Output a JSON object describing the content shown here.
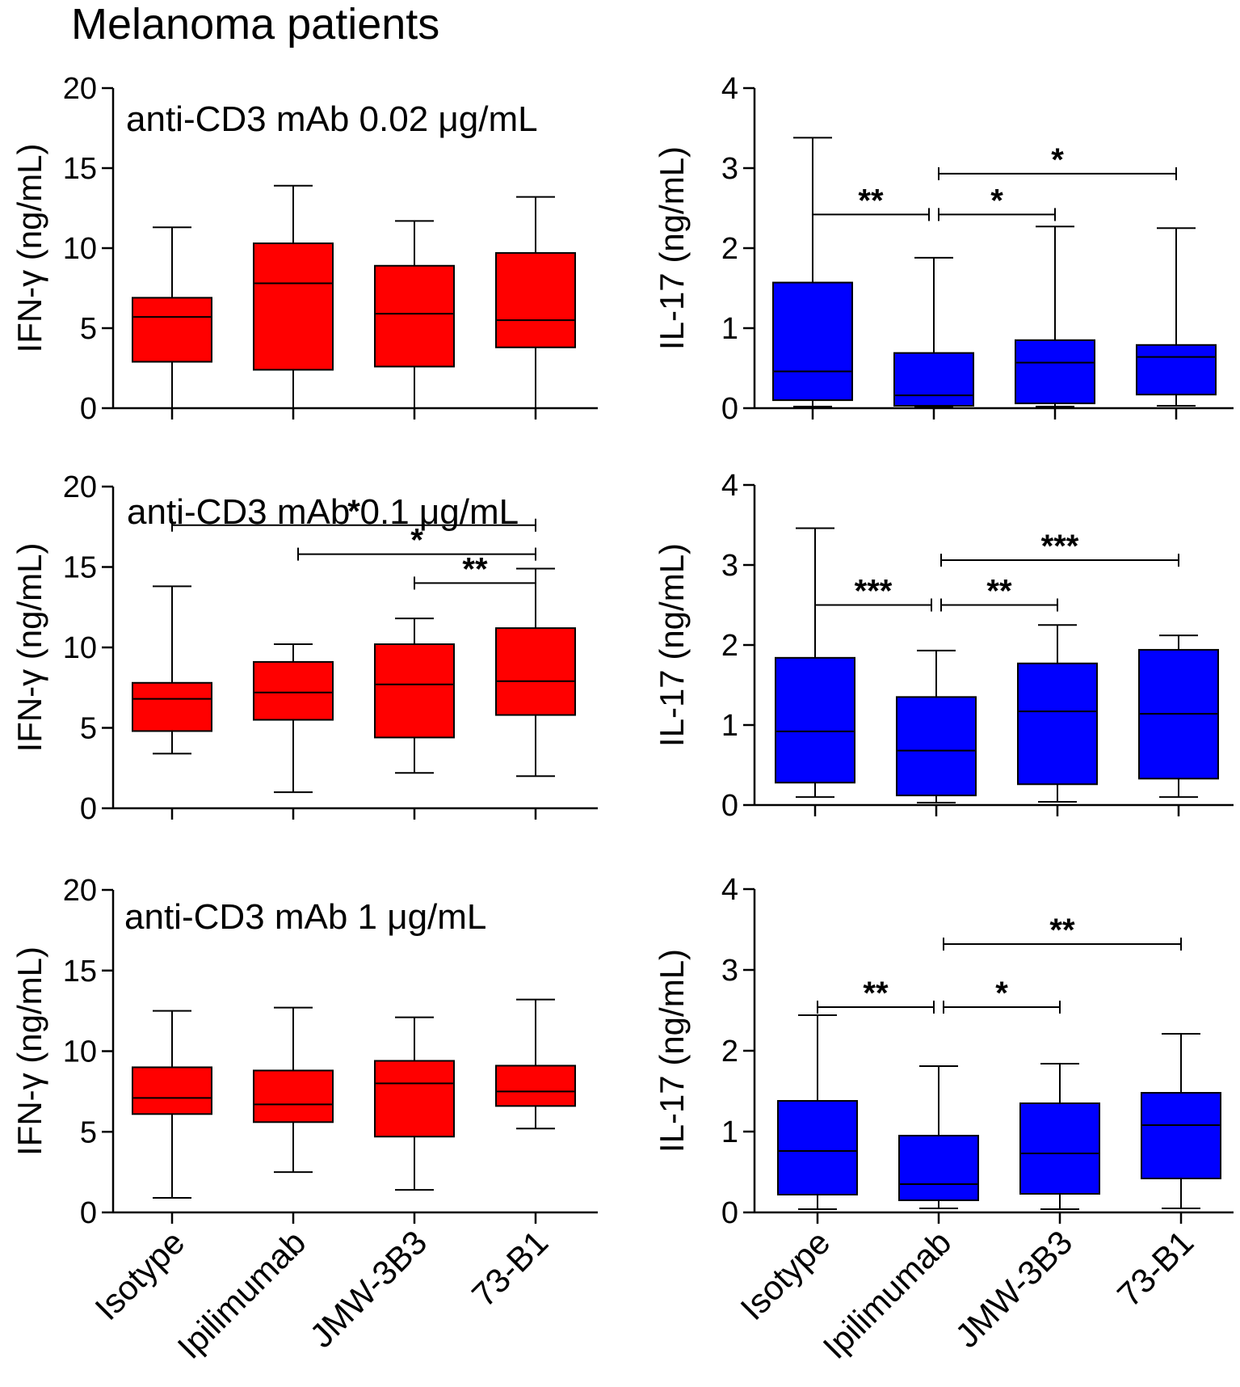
{
  "figure": {
    "title": "Melanoma patients"
  },
  "chart_data": [
    {
      "type": "box",
      "id": "ifn-002",
      "title": "anti-CD3 mAb 0.02 μg/mL",
      "ylabel": "IFN-γ (ng/mL)",
      "ylim": [
        0,
        20
      ],
      "yticks": [
        "0",
        "5",
        "10",
        "15",
        "20"
      ],
      "categories": [
        "Isotype",
        "Ipilimumab",
        "JMW-3B3",
        "73-B1"
      ],
      "series": [
        {
          "name": "Isotype",
          "min": 0,
          "q1": 2.9,
          "median": 5.7,
          "q3": 6.9,
          "max": 11.3
        },
        {
          "name": "Ipilimumab",
          "min": 0,
          "q1": 2.4,
          "median": 7.8,
          "q3": 10.3,
          "max": 13.9
        },
        {
          "name": "JMW-3B3",
          "min": 0,
          "q1": 2.6,
          "median": 5.9,
          "q3": 8.9,
          "max": 11.7
        },
        {
          "name": "73-B1",
          "min": 0,
          "q1": 3.8,
          "median": 5.5,
          "q3": 9.7,
          "max": 13.2
        }
      ],
      "significance": []
    },
    {
      "type": "box",
      "id": "il17-002",
      "title": "",
      "ylabel": "IL-17 (ng/mL)",
      "ylim": [
        0,
        4
      ],
      "yticks": [
        "0",
        "1",
        "2",
        "3",
        "4"
      ],
      "categories": [
        "Isotype",
        "Ipilimumab",
        "JMW-3B3",
        "73-B1"
      ],
      "series": [
        {
          "name": "Isotype",
          "min": 0.02,
          "q1": 0.1,
          "median": 0.46,
          "q3": 1.57,
          "max": 3.38
        },
        {
          "name": "Ipilimumab",
          "min": 0.02,
          "q1": 0.03,
          "median": 0.16,
          "q3": 0.69,
          "max": 1.88
        },
        {
          "name": "JMW-3B3",
          "min": 0.02,
          "q1": 0.06,
          "median": 0.57,
          "q3": 0.85,
          "max": 2.27
        },
        {
          "name": "73-B1",
          "min": 0.03,
          "q1": 0.17,
          "median": 0.64,
          "q3": 0.79,
          "max": 2.25
        }
      ],
      "significance": [
        {
          "from": 0,
          "to": 1,
          "label": "**",
          "y": 2.42
        },
        {
          "from": 1,
          "to": 2,
          "label": "*",
          "y": 2.42
        },
        {
          "from": 1,
          "to": 3,
          "label": "*",
          "y": 2.93
        }
      ]
    },
    {
      "type": "box",
      "id": "ifn-01",
      "title": "anti-CD3 mAb 0.1 μg/mL",
      "ylabel": "IFN-γ (ng/mL)",
      "ylim": [
        0,
        20
      ],
      "yticks": [
        "0",
        "5",
        "10",
        "15",
        "20"
      ],
      "categories": [
        "Isotype",
        "Ipilimumab",
        "JMW-3B3",
        "73-B1"
      ],
      "series": [
        {
          "name": "Isotype",
          "min": 3.4,
          "q1": 4.8,
          "median": 6.8,
          "q3": 7.8,
          "max": 13.8
        },
        {
          "name": "Ipilimumab",
          "min": 1.0,
          "q1": 5.5,
          "median": 7.2,
          "q3": 9.1,
          "max": 10.2
        },
        {
          "name": "JMW-3B3",
          "min": 2.2,
          "q1": 4.4,
          "median": 7.7,
          "q3": 10.2,
          "max": 11.8
        },
        {
          "name": "73-B1",
          "min": 2.0,
          "q1": 5.8,
          "median": 7.9,
          "q3": 11.2,
          "max": 14.9
        }
      ],
      "significance": [
        {
          "from": 0,
          "to": 3,
          "label": "*",
          "y": 17.6
        },
        {
          "from": 1,
          "to": 3,
          "label": "*",
          "y": 15.8
        },
        {
          "from": 2,
          "to": 3,
          "label": "**",
          "y": 14.0
        }
      ]
    },
    {
      "type": "box",
      "id": "il17-01",
      "title": "",
      "ylabel": "IL-17 (ng/mL)",
      "ylim": [
        0,
        4
      ],
      "yticks": [
        "0",
        "1",
        "2",
        "3",
        "4"
      ],
      "categories": [
        "Isotype",
        "Ipilimumab",
        "JMW-3B3",
        "73-B1"
      ],
      "series": [
        {
          "name": "Isotype",
          "min": 0.1,
          "q1": 0.28,
          "median": 0.92,
          "q3": 1.84,
          "max": 3.46
        },
        {
          "name": "Ipilimumab",
          "min": 0.03,
          "q1": 0.12,
          "median": 0.68,
          "q3": 1.35,
          "max": 1.93
        },
        {
          "name": "JMW-3B3",
          "min": 0.04,
          "q1": 0.26,
          "median": 1.17,
          "q3": 1.77,
          "max": 2.25
        },
        {
          "name": "73-B1",
          "min": 0.1,
          "q1": 0.33,
          "median": 1.14,
          "q3": 1.94,
          "max": 2.12
        }
      ],
      "significance": [
        {
          "from": 0,
          "to": 1,
          "label": "***",
          "y": 2.5
        },
        {
          "from": 1,
          "to": 2,
          "label": "**",
          "y": 2.5
        },
        {
          "from": 1,
          "to": 3,
          "label": "***",
          "y": 3.06
        }
      ]
    },
    {
      "type": "box",
      "id": "ifn-1",
      "title": "anti-CD3 mAb 1 μg/mL",
      "ylabel": "IFN-γ (ng/mL)",
      "ylim": [
        0,
        20
      ],
      "yticks": [
        "0",
        "5",
        "10",
        "15",
        "20"
      ],
      "categories": [
        "Isotype",
        "Ipilimumab",
        "JMW-3B3",
        "73-B1"
      ],
      "series": [
        {
          "name": "Isotype",
          "min": 0.9,
          "q1": 6.1,
          "median": 7.1,
          "q3": 9.0,
          "max": 12.5
        },
        {
          "name": "Ipilimumab",
          "min": 2.5,
          "q1": 5.6,
          "median": 6.7,
          "q3": 8.8,
          "max": 12.7
        },
        {
          "name": "JMW-3B3",
          "min": 1.4,
          "q1": 4.7,
          "median": 8.0,
          "q3": 9.4,
          "max": 12.1
        },
        {
          "name": "73-B1",
          "min": 5.2,
          "q1": 6.6,
          "median": 7.5,
          "q3": 9.1,
          "max": 13.2
        }
      ],
      "significance": []
    },
    {
      "type": "box",
      "id": "il17-1",
      "title": "",
      "ylabel": "IL-17 (ng/mL)",
      "ylim": [
        0,
        4
      ],
      "yticks": [
        "0",
        "1",
        "2",
        "3",
        "4"
      ],
      "categories": [
        "Isotype",
        "Ipilimumab",
        "JMW-3B3",
        "73-B1"
      ],
      "series": [
        {
          "name": "Isotype",
          "min": 0.04,
          "q1": 0.22,
          "median": 0.76,
          "q3": 1.38,
          "max": 2.44
        },
        {
          "name": "Ipilimumab",
          "min": 0.05,
          "q1": 0.15,
          "median": 0.35,
          "q3": 0.95,
          "max": 1.81
        },
        {
          "name": "JMW-3B3",
          "min": 0.04,
          "q1": 0.23,
          "median": 0.73,
          "q3": 1.35,
          "max": 1.84
        },
        {
          "name": "73-B1",
          "min": 0.05,
          "q1": 0.42,
          "median": 1.08,
          "q3": 1.48,
          "max": 2.21
        }
      ],
      "significance": [
        {
          "from": 0,
          "to": 1,
          "label": "**",
          "y": 2.54
        },
        {
          "from": 1,
          "to": 2,
          "label": "*",
          "y": 2.54
        },
        {
          "from": 1,
          "to": 3,
          "label": "**",
          "y": 3.32
        }
      ]
    }
  ],
  "colors": {
    "ifn_fill": "#ff0000",
    "il17_fill": "#0000ff",
    "line": "#000000"
  }
}
